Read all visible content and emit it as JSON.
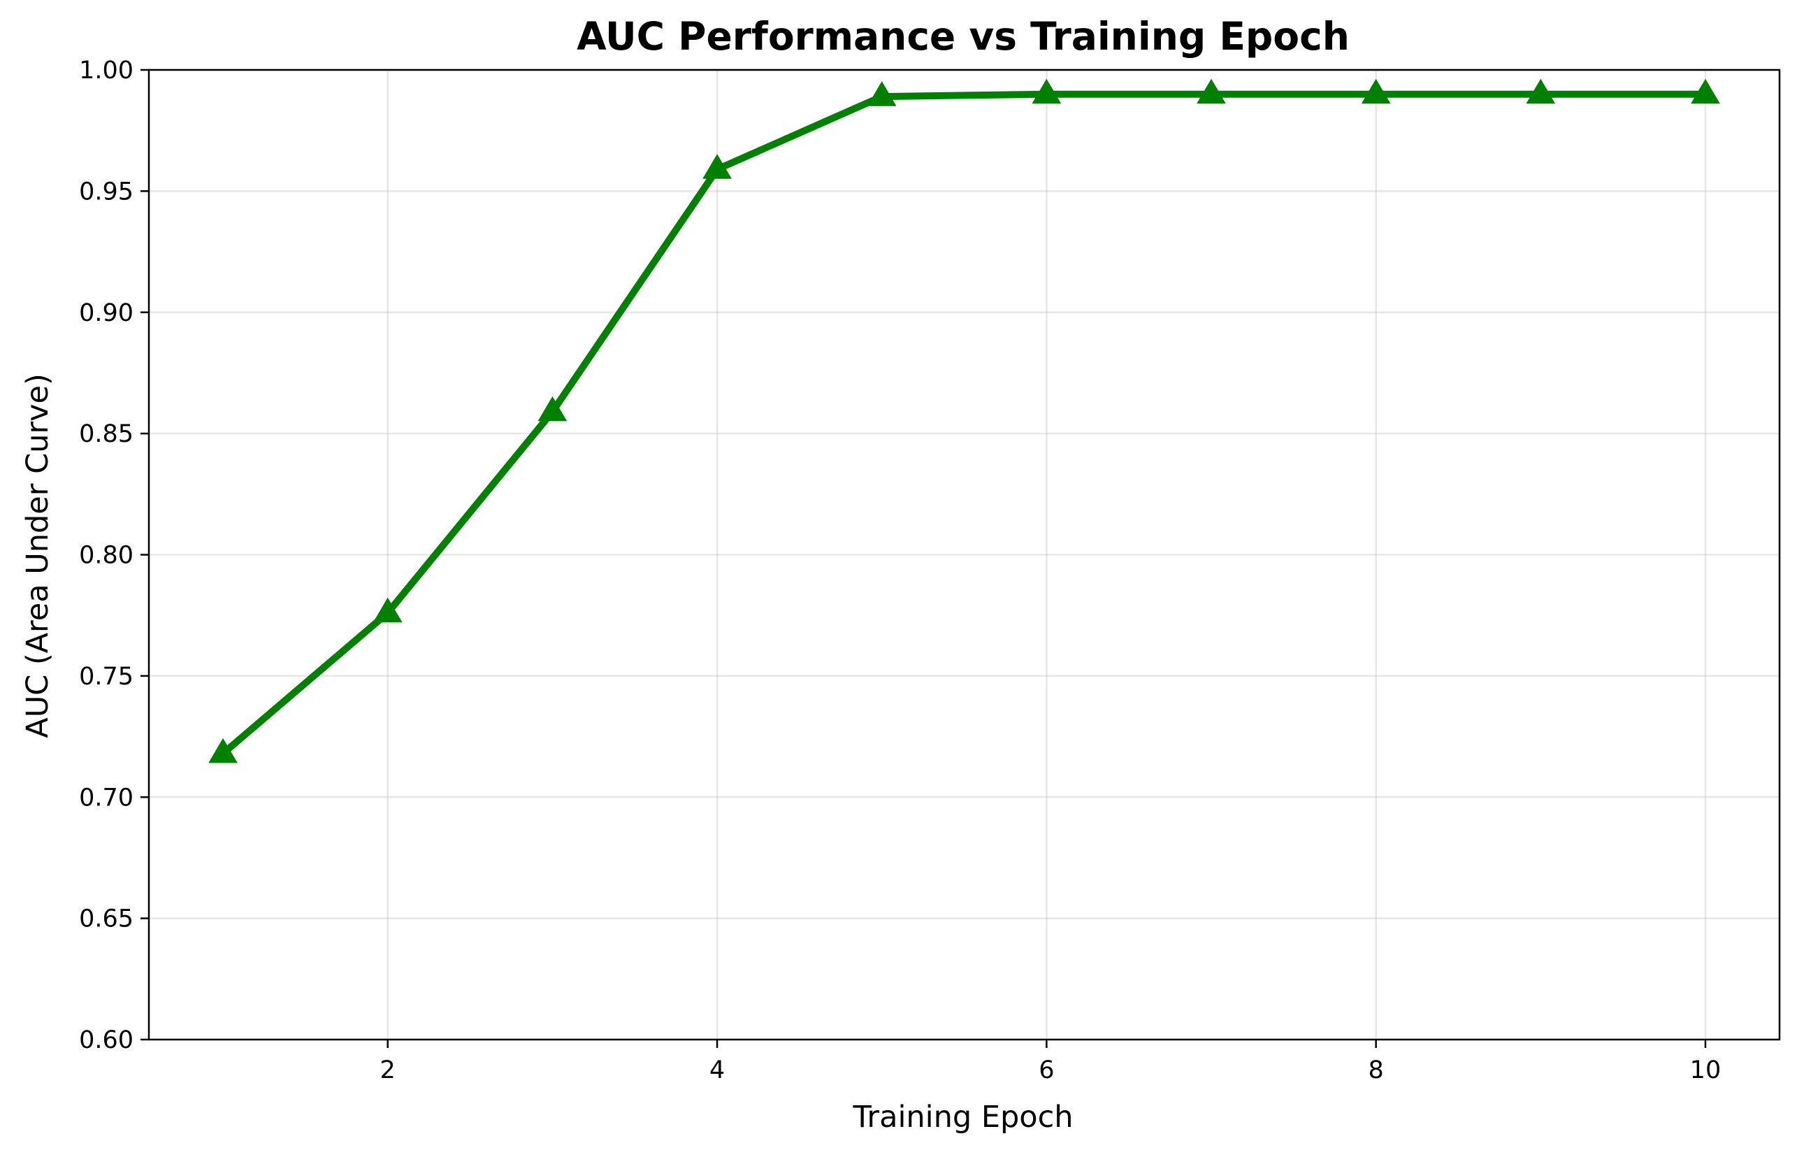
{
  "chart_data": {
    "type": "line",
    "title": "AUC Performance vs Training Epoch",
    "xlabel": "Training Epoch",
    "ylabel": "AUC (Area Under Curve)",
    "xlim": [
      0.55,
      10.45
    ],
    "ylim": [
      0.6,
      1.0
    ],
    "xticks": [
      2,
      4,
      6,
      8,
      10
    ],
    "xtick_labels": [
      "2",
      "4",
      "6",
      "8",
      "10"
    ],
    "yticks": [
      0.6,
      0.65,
      0.7,
      0.75,
      0.8,
      0.85,
      0.9,
      0.95,
      1.0
    ],
    "ytick_labels": [
      "0.60",
      "0.65",
      "0.70",
      "0.75",
      "0.80",
      "0.85",
      "0.90",
      "0.95",
      "1.00"
    ],
    "grid": true,
    "series": [
      {
        "x": [
          1,
          2,
          3,
          4,
          5,
          6,
          7,
          8,
          9,
          10
        ],
        "values": [
          0.718,
          0.776,
          0.859,
          0.959,
          0.989,
          0.99,
          0.99,
          0.99,
          0.99,
          0.99
        ],
        "color": "#008000",
        "marker": "triangle-up"
      }
    ]
  }
}
